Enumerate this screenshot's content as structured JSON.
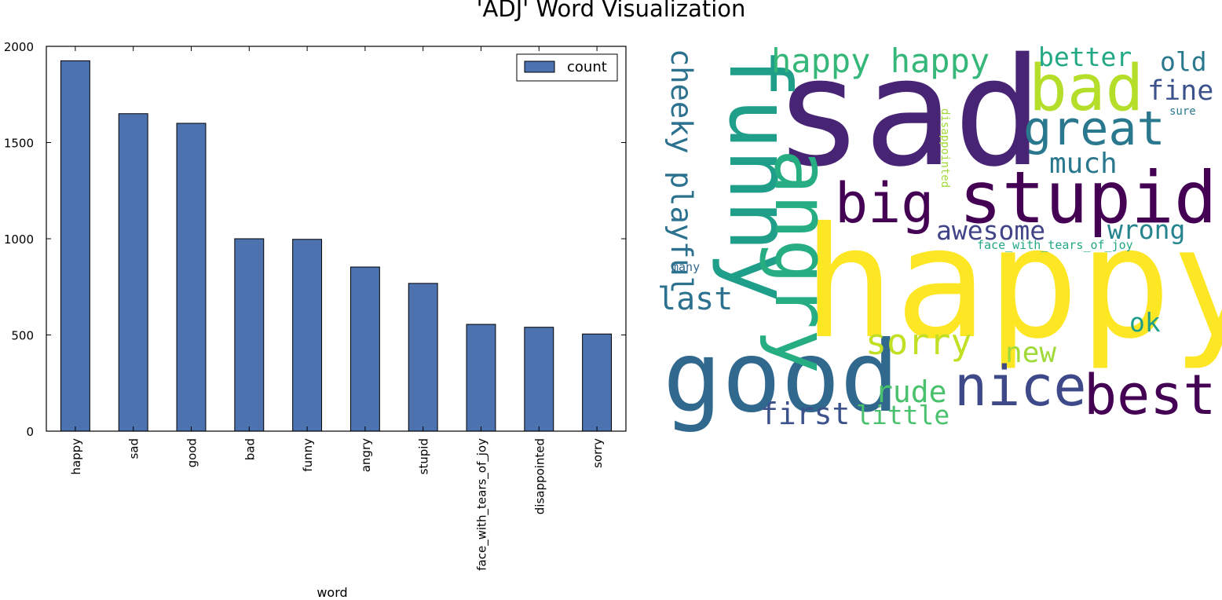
{
  "title": "'ADJ' Word Visualization",
  "chart_data": [
    {
      "type": "bar",
      "categories": [
        "happy",
        "sad",
        "good",
        "bad",
        "funny",
        "angry",
        "stupid",
        "face_with_tears_of_joy",
        "disappointed",
        "sorry"
      ],
      "series": [
        {
          "name": "count",
          "values": [
            1925,
            1650,
            1600,
            1000,
            997,
            853,
            768,
            555,
            540,
            505
          ],
          "color": "#4c72b0"
        }
      ],
      "xlabel": "word",
      "ylabel": "",
      "ylim": [
        0,
        2000
      ],
      "yticks": [
        0,
        500,
        1000,
        1500,
        2000
      ],
      "legend": {
        "position": "top-right",
        "entries": [
          "count"
        ]
      },
      "grid": false
    },
    {
      "type": "wordcloud",
      "colormap": "viridis",
      "words": [
        {
          "text": "happy",
          "color": "#fde725"
        },
        {
          "text": "sad",
          "color": "#482475"
        },
        {
          "text": "good",
          "color": "#31688e"
        },
        {
          "text": "funny",
          "color": "#1f9e89"
        },
        {
          "text": "angry",
          "color": "#26ad81"
        },
        {
          "text": "stupid",
          "color": "#440154"
        },
        {
          "text": "bad",
          "color": "#b5de2b"
        },
        {
          "text": "nice",
          "color": "#3e4989"
        },
        {
          "text": "best",
          "color": "#440154"
        },
        {
          "text": "big",
          "color": "#440154"
        },
        {
          "text": "great",
          "color": "#2a788e"
        },
        {
          "text": "happy happy",
          "color": "#35b779"
        },
        {
          "text": "sorry",
          "color": "#c2df23"
        },
        {
          "text": "cheeky playful",
          "color": "#2c728e"
        },
        {
          "text": "last",
          "color": "#2c728e"
        },
        {
          "text": "rude",
          "color": "#4ac16d"
        },
        {
          "text": "first",
          "color": "#3b528b"
        },
        {
          "text": "little",
          "color": "#4ac16d"
        },
        {
          "text": "new",
          "color": "#a0da39"
        },
        {
          "text": "ok",
          "color": "#1f9e89"
        },
        {
          "text": "better",
          "color": "#22a884"
        },
        {
          "text": "old",
          "color": "#2a788e"
        },
        {
          "text": "fine",
          "color": "#3b528b"
        },
        {
          "text": "much",
          "color": "#2a788e"
        },
        {
          "text": "awesome",
          "color": "#414487"
        },
        {
          "text": "wrong",
          "color": "#25848e"
        },
        {
          "text": "face_with_tears_of_joy",
          "color": "#22a884"
        },
        {
          "text": "many",
          "color": "#31688e"
        },
        {
          "text": "sure",
          "color": "#2a788e"
        },
        {
          "text": "disappointed",
          "color": "#a0da39"
        }
      ]
    }
  ]
}
